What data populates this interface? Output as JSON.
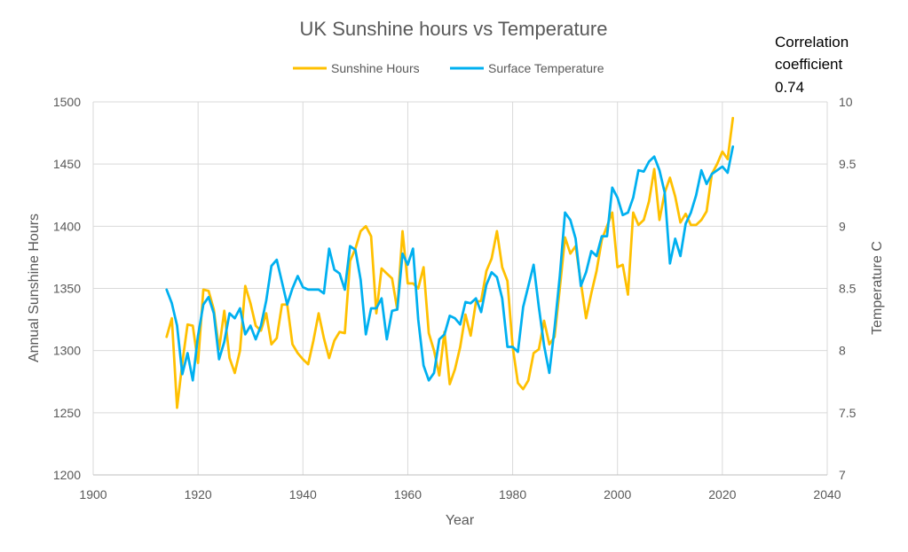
{
  "colors": {
    "sunshine": "#FFC000",
    "temperature": "#00B0F0",
    "grid": "#D9D9D9",
    "text": "#595959"
  },
  "chart_data": {
    "type": "line",
    "title": "UK Sunshine hours vs Temperature",
    "xlabel": "Year",
    "ylabel": "Annual Sunshine Hours",
    "y2label": "Temperature C",
    "xlim": [
      1900,
      2040
    ],
    "ylim": [
      1200,
      1500
    ],
    "y2lim": [
      7,
      10
    ],
    "x_ticks": [
      "1900",
      "1920",
      "1940",
      "1960",
      "1980",
      "2000",
      "2020",
      "2040"
    ],
    "y_ticks": [
      "1200",
      "1250",
      "1300",
      "1350",
      "1400",
      "1450",
      "1500"
    ],
    "y2_ticks": [
      "7",
      "7.5",
      "8",
      "8.5",
      "9",
      "9.5",
      "10"
    ],
    "grid": true,
    "legend_position": "top",
    "annotation": [
      "Correlation",
      "coefficient",
      "0.74"
    ],
    "years": [
      1914,
      1915,
      1916,
      1917,
      1918,
      1919,
      1920,
      1921,
      1922,
      1923,
      1924,
      1925,
      1926,
      1927,
      1928,
      1929,
      1930,
      1931,
      1932,
      1933,
      1934,
      1935,
      1936,
      1937,
      1938,
      1939,
      1940,
      1941,
      1942,
      1943,
      1944,
      1945,
      1946,
      1947,
      1948,
      1949,
      1950,
      1951,
      1952,
      1953,
      1954,
      1955,
      1956,
      1957,
      1958,
      1959,
      1960,
      1961,
      1962,
      1963,
      1964,
      1965,
      1966,
      1967,
      1968,
      1969,
      1970,
      1971,
      1972,
      1973,
      1974,
      1975,
      1976,
      1977,
      1978,
      1979,
      1980,
      1981,
      1982,
      1983,
      1984,
      1985,
      1986,
      1987,
      1988,
      1989,
      1990,
      1991,
      1992,
      1993,
      1994,
      1995,
      1996,
      1997,
      1998,
      1999,
      2000,
      2001,
      2002,
      2003,
      2004,
      2005,
      2006,
      2007,
      2008,
      2009,
      2010,
      2011,
      2012,
      2013,
      2014,
      2015,
      2016,
      2017,
      2018,
      2019,
      2020,
      2021,
      2022
    ],
    "series": [
      {
        "name": "Sunshine Hours",
        "axis": "left",
        "values": [
          1311,
          1326,
          1254,
          1290,
          1321,
          1320,
          1290,
          1349,
          1348,
          1333,
          1301,
          1332,
          1294,
          1282,
          1300,
          1352,
          1338,
          1320,
          1316,
          1330,
          1305,
          1310,
          1337,
          1337,
          1305,
          1298,
          1293,
          1289,
          1308,
          1330,
          1310,
          1294,
          1308,
          1315,
          1314,
          1372,
          1382,
          1396,
          1400,
          1392,
          1330,
          1366,
          1362,
          1358,
          1333,
          1396,
          1354,
          1354,
          1350,
          1367,
          1314,
          1300,
          1280,
          1315,
          1273,
          1285,
          1303,
          1329,
          1312,
          1339,
          1340,
          1364,
          1374,
          1396,
          1367,
          1356,
          1303,
          1274,
          1269,
          1276,
          1298,
          1301,
          1324,
          1305,
          1311,
          1350,
          1391,
          1378,
          1384,
          1355,
          1326,
          1346,
          1364,
          1389,
          1400,
          1411,
          1367,
          1369,
          1345,
          1411,
          1401,
          1405,
          1420,
          1446,
          1405,
          1427,
          1439,
          1424,
          1403,
          1410,
          1401,
          1401,
          1405,
          1412,
          1442,
          1450,
          1460,
          1454,
          1487
        ]
      },
      {
        "name": "Surface Temperature",
        "axis": "right",
        "values": [
          8.49,
          8.38,
          8.2,
          7.81,
          7.98,
          7.76,
          8.12,
          8.37,
          8.43,
          8.3,
          7.93,
          8.07,
          8.3,
          8.26,
          8.34,
          8.13,
          8.2,
          8.09,
          8.2,
          8.4,
          8.68,
          8.73,
          8.55,
          8.37,
          8.5,
          8.6,
          8.51,
          8.49,
          8.49,
          8.49,
          8.46,
          8.82,
          8.65,
          8.62,
          8.49,
          8.84,
          8.81,
          8.57,
          8.13,
          8.34,
          8.34,
          8.42,
          8.09,
          8.32,
          8.33,
          8.78,
          8.69,
          8.82,
          8.25,
          7.88,
          7.76,
          7.82,
          8.09,
          8.13,
          8.28,
          8.26,
          8.21,
          8.39,
          8.38,
          8.42,
          8.31,
          8.53,
          8.63,
          8.59,
          8.42,
          8.03,
          8.03,
          7.99,
          8.35,
          8.52,
          8.69,
          8.35,
          8.04,
          7.82,
          8.18,
          8.6,
          9.11,
          9.05,
          8.9,
          8.52,
          8.63,
          8.8,
          8.76,
          8.92,
          8.92,
          9.31,
          9.23,
          9.09,
          9.11,
          9.23,
          9.45,
          9.44,
          9.52,
          9.56,
          9.45,
          9.27,
          8.7,
          8.9,
          8.76,
          9.02,
          9.11,
          9.25,
          9.45,
          9.34,
          9.42,
          9.45,
          9.48,
          9.43,
          9.64
        ]
      }
    ]
  }
}
